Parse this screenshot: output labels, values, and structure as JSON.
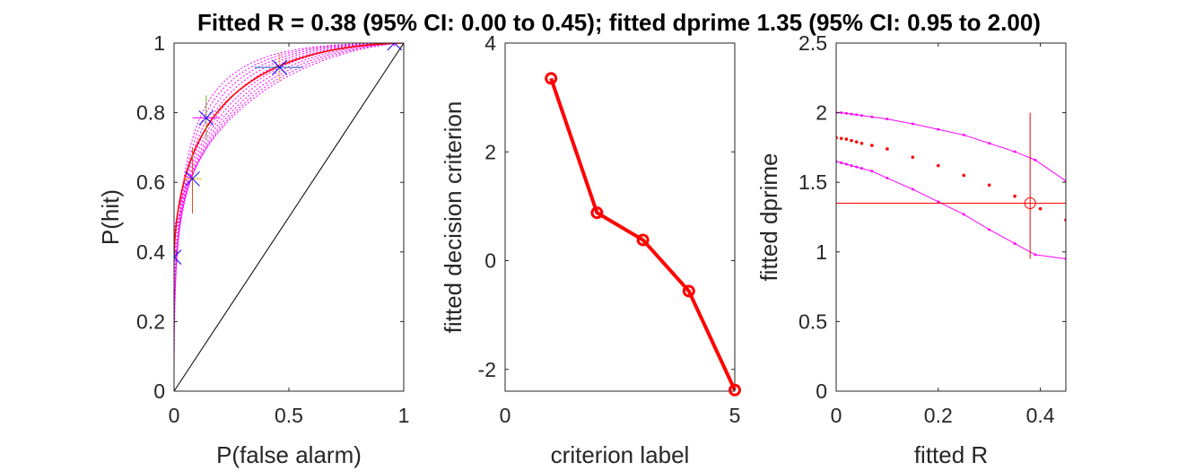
{
  "chart_data": [
    {
      "type": "scatter",
      "title": "Fitted R = 0.38 (95% CI: 0.00 to 0.45); fitted dprime 1.35 (95% CI: 0.95 to 2.00)",
      "xlabel": "P(false alarm)",
      "ylabel": "P(hit)",
      "xlim": [
        0,
        1
      ],
      "ylim": [
        0,
        1
      ],
      "xticks": [
        "0",
        "0.5",
        "1"
      ],
      "yticks": [
        "0",
        "0.2",
        "0.4",
        "0.6",
        "0.8",
        "1"
      ],
      "chance_line": {
        "x": [
          0,
          1
        ],
        "y": [
          0,
          1
        ],
        "color": "#000000"
      },
      "observed_points": {
        "x": [
          0.0,
          0.08,
          0.14,
          0.46,
          0.96
        ],
        "y": [
          0.385,
          0.61,
          0.785,
          0.93,
          1.0
        ],
        "xerr_low": [
          0.0,
          0.04,
          0.08,
          0.35,
          0.95
        ],
        "xerr_high": [
          0.01,
          0.12,
          0.2,
          0.56,
          0.97
        ],
        "yerr_low": [
          0.35,
          0.51,
          0.72,
          0.89,
          0.99
        ],
        "yerr_high": [
          0.42,
          0.7,
          0.85,
          0.97,
          1.0
        ],
        "marker_color": "#0000ff"
      },
      "fitted_curve": {
        "R": 0.38,
        "dprime": 1.35,
        "color": "#ff0000"
      },
      "ci_curves": {
        "color": "#ff00ff",
        "dprime_range": [
          0.95,
          2.0
        ],
        "R_range": [
          0.0,
          0.45
        ]
      },
      "grid": false
    },
    {
      "type": "line",
      "xlabel": "criterion label",
      "ylabel": "fitted decision criterion",
      "xlim": [
        0,
        5
      ],
      "ylim": [
        -2.4,
        4
      ],
      "xticks": [
        "0",
        "5"
      ],
      "yticks": [
        "-2",
        "0",
        "2",
        "4"
      ],
      "x": [
        1,
        2,
        3,
        4,
        5
      ],
      "y": [
        3.35,
        0.88,
        0.38,
        -0.56,
        -2.38
      ],
      "color": "#ff0000",
      "marker": "circle",
      "grid": false
    },
    {
      "type": "scatter",
      "xlabel": "fitted R",
      "ylabel": "fitted dprime",
      "xlim": [
        0,
        0.45
      ],
      "ylim": [
        0,
        2.5
      ],
      "xticks": [
        "0",
        "0.2",
        "0.4"
      ],
      "yticks": [
        "0",
        "0.5",
        "1",
        "1.5",
        "2",
        "2.5"
      ],
      "series": [
        {
          "role": "upper-ci",
          "color": "#ff00ff",
          "x": [
            0.0,
            0.01,
            0.02,
            0.03,
            0.04,
            0.05,
            0.07,
            0.1,
            0.15,
            0.2,
            0.25,
            0.3,
            0.35,
            0.39,
            0.45
          ],
          "y": [
            2.0,
            2.0,
            1.995,
            1.99,
            1.985,
            1.98,
            1.97,
            1.955,
            1.92,
            1.88,
            1.84,
            1.78,
            1.72,
            1.66,
            1.51
          ]
        },
        {
          "role": "best-fit",
          "color": "#ff0000",
          "x": [
            0.0,
            0.01,
            0.02,
            0.03,
            0.04,
            0.05,
            0.07,
            0.1,
            0.15,
            0.2,
            0.25,
            0.3,
            0.35,
            0.4,
            0.45
          ],
          "y": [
            1.82,
            1.815,
            1.81,
            1.8,
            1.79,
            1.78,
            1.765,
            1.74,
            1.68,
            1.62,
            1.55,
            1.48,
            1.4,
            1.31,
            1.23
          ]
        },
        {
          "role": "lower-ci",
          "color": "#ff00ff",
          "x": [
            0.0,
            0.01,
            0.02,
            0.03,
            0.04,
            0.05,
            0.07,
            0.1,
            0.15,
            0.2,
            0.25,
            0.3,
            0.35,
            0.39,
            0.45
          ],
          "y": [
            1.65,
            1.64,
            1.63,
            1.62,
            1.61,
            1.6,
            1.58,
            1.53,
            1.45,
            1.36,
            1.27,
            1.16,
            1.06,
            0.98,
            0.95
          ]
        }
      ],
      "estimate": {
        "x": 0.38,
        "y": 1.35,
        "x_ci": [
          0.0,
          0.45
        ],
        "y_ci": [
          0.95,
          2.0
        ],
        "color": "#ff0000"
      },
      "grid": false
    }
  ]
}
